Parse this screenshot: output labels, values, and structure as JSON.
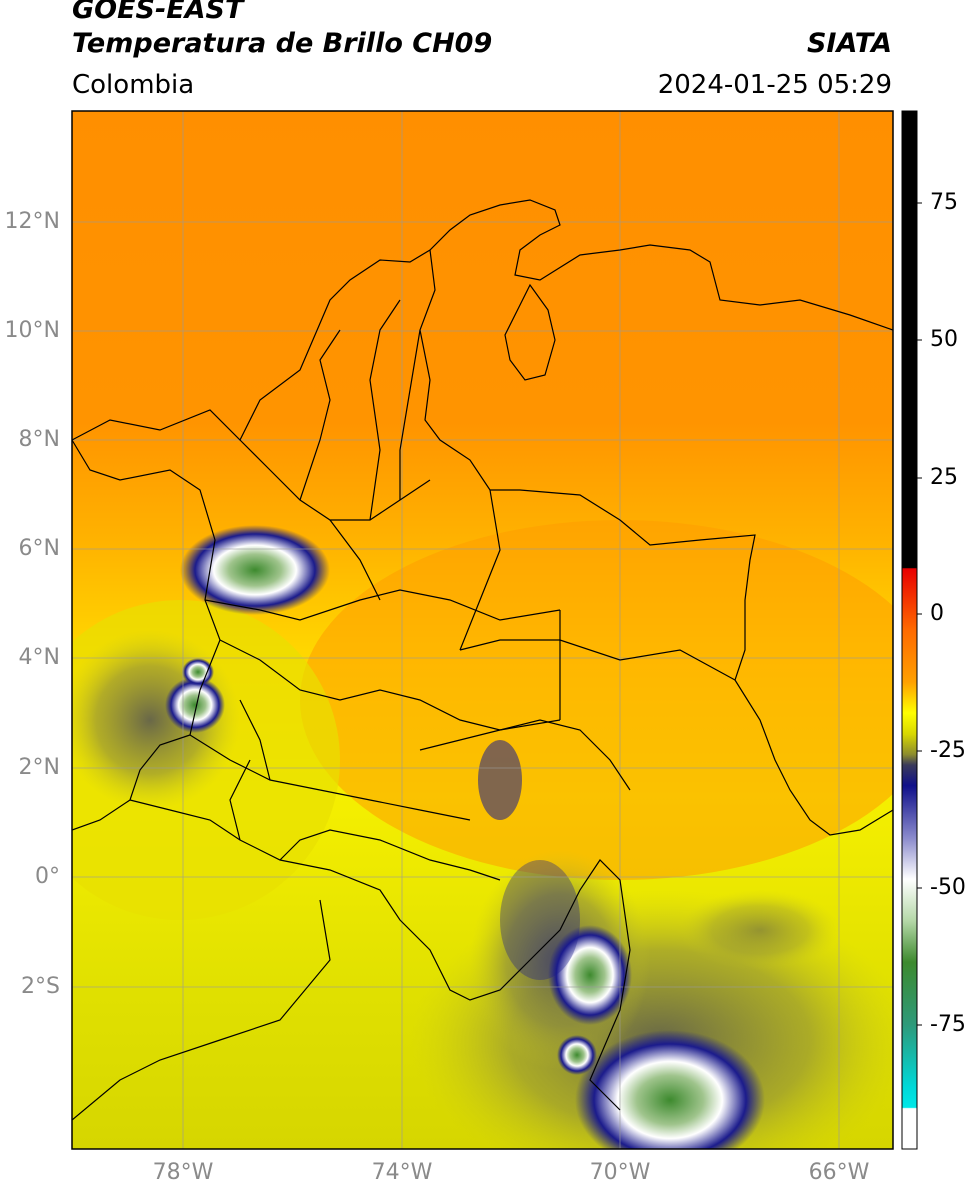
{
  "header": {
    "title_line1": "GOES-EAST",
    "title_line2": "Temperatura de Brillo CH09",
    "region": "Colombia",
    "source": "SIATA",
    "datetime": "2024-01-25 05:29"
  },
  "map": {
    "lat_ticks": [
      "12°N",
      "10°N",
      "8°N",
      "6°N",
      "4°N",
      "2°N",
      "0°",
      "2°S"
    ],
    "lon_ticks": [
      "78°W",
      "74°W",
      "70°W",
      "66°W"
    ],
    "colors": {
      "warm": "#ff8c00",
      "mid": "#f5f500",
      "cold_blue": "#1a1a8c",
      "green": "#3d8a2e"
    }
  },
  "colorbar": {
    "ticks": [
      "75",
      "50",
      "25",
      "0",
      "-25",
      "-50",
      "-75"
    ],
    "colors": [
      "#000000",
      "#e60000",
      "#ff8c00",
      "#ffff00",
      "#8c8c2e",
      "#2e2e6e",
      "#1010a0",
      "#ffffff",
      "#3d8a2e",
      "#1ab39a",
      "#00e5e5",
      "#ffffff"
    ]
  }
}
